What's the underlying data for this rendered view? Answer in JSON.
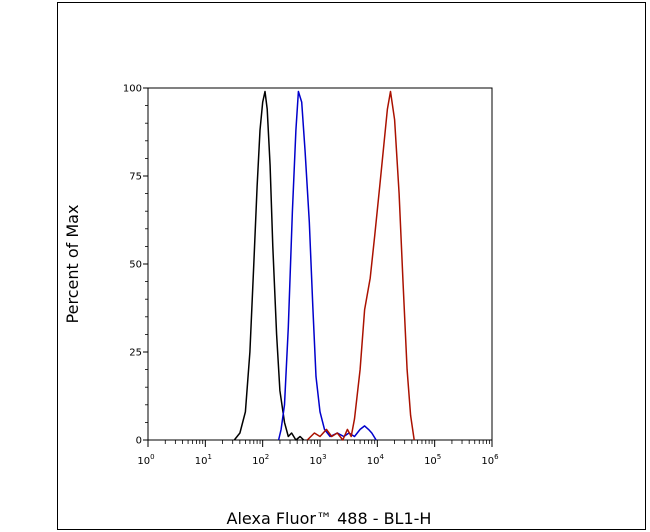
{
  "chart_data": {
    "type": "line",
    "title": "",
    "xlabel": "Alexa Fluor™ 488 - BL1-H",
    "ylabel": "Percent of Max",
    "x_scale": "log",
    "xlim": [
      1,
      1000000
    ],
    "ylim": [
      0,
      100
    ],
    "x_ticks": [
      1,
      10,
      100,
      1000,
      10000,
      100000,
      1000000
    ],
    "x_tick_labels": [
      {
        "base": "10",
        "exp": "0"
      },
      {
        "base": "10",
        "exp": "1"
      },
      {
        "base": "10",
        "exp": "2"
      },
      {
        "base": "10",
        "exp": "3"
      },
      {
        "base": "10",
        "exp": "4"
      },
      {
        "base": "10",
        "exp": "5"
      },
      {
        "base": "10",
        "exp": "6"
      }
    ],
    "y_ticks": [
      0,
      25,
      50,
      75,
      100
    ],
    "y_tick_labels": [
      "0",
      "25",
      "50",
      "75",
      "100"
    ],
    "grid": false,
    "series": [
      {
        "color": "#000000",
        "points": [
          [
            32,
            0
          ],
          [
            40,
            2
          ],
          [
            50,
            8
          ],
          [
            60,
            25
          ],
          [
            70,
            50
          ],
          [
            80,
            72
          ],
          [
            90,
            88
          ],
          [
            100,
            96
          ],
          [
            110,
            99
          ],
          [
            120,
            94
          ],
          [
            135,
            78
          ],
          [
            150,
            55
          ],
          [
            175,
            30
          ],
          [
            200,
            14
          ],
          [
            240,
            5
          ],
          [
            280,
            1
          ],
          [
            320,
            2
          ],
          [
            380,
            0
          ],
          [
            450,
            1
          ],
          [
            520,
            0
          ]
        ]
      },
      {
        "color": "#0000cc",
        "points": [
          [
            190,
            0
          ],
          [
            210,
            3
          ],
          [
            240,
            10
          ],
          [
            280,
            32
          ],
          [
            330,
            65
          ],
          [
            380,
            88
          ],
          [
            420,
            99
          ],
          [
            480,
            96
          ],
          [
            550,
            82
          ],
          [
            650,
            62
          ],
          [
            750,
            38
          ],
          [
            850,
            18
          ],
          [
            1000,
            8
          ],
          [
            1200,
            3
          ],
          [
            1500,
            1
          ],
          [
            2000,
            2
          ],
          [
            2600,
            1
          ],
          [
            3200,
            2
          ],
          [
            4000,
            1
          ],
          [
            5000,
            3
          ],
          [
            6000,
            4
          ],
          [
            7000,
            3
          ],
          [
            8000,
            2
          ],
          [
            9500,
            0
          ]
        ]
      },
      {
        "color": "#aa1100",
        "points": [
          [
            600,
            0
          ],
          [
            800,
            2
          ],
          [
            1000,
            1
          ],
          [
            1300,
            3
          ],
          [
            1600,
            1
          ],
          [
            2000,
            2
          ],
          [
            2500,
            0
          ],
          [
            3000,
            3
          ],
          [
            3500,
            1
          ],
          [
            4000,
            6
          ],
          [
            5000,
            20
          ],
          [
            6000,
            37
          ],
          [
            7500,
            46
          ],
          [
            9000,
            58
          ],
          [
            11000,
            72
          ],
          [
            13000,
            84
          ],
          [
            15000,
            94
          ],
          [
            17000,
            99
          ],
          [
            20000,
            91
          ],
          [
            24000,
            70
          ],
          [
            28000,
            45
          ],
          [
            33000,
            20
          ],
          [
            38000,
            7
          ],
          [
            44000,
            0
          ]
        ]
      }
    ]
  }
}
